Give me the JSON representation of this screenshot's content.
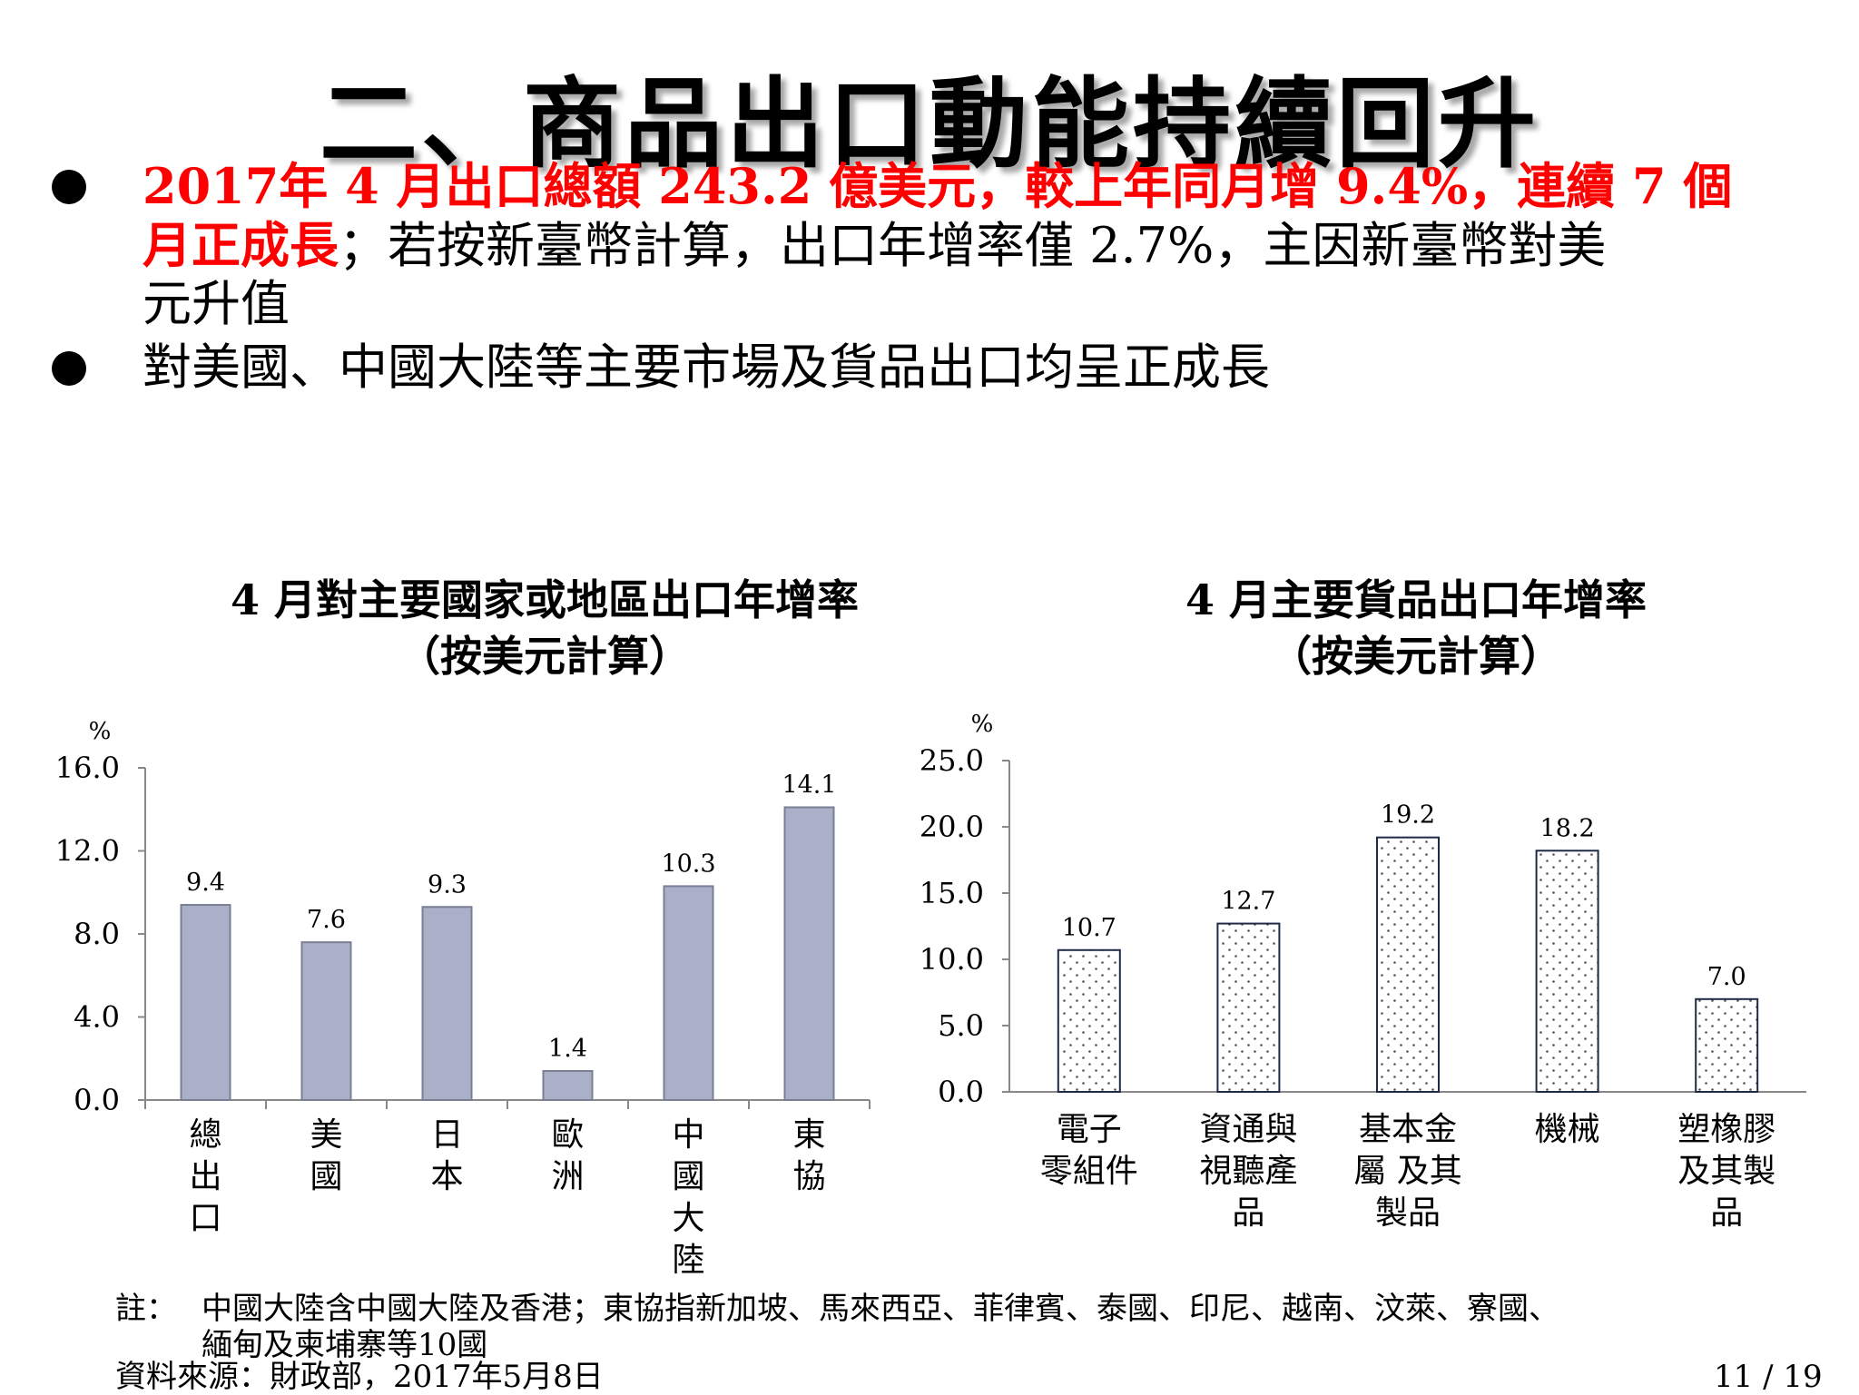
{
  "slide": {
    "title": "二、商品出口動能持續回升",
    "bullets": [
      {
        "red": "2017年 4 月出口總額 243.2 億美元，較上年同月增 9.4%，連續 7 個",
        "red2": "月正成長",
        "rest2": "；若按新臺幣計算，出口年增率僅 2.7%，主因新臺幣對美",
        "rest3": "元升值"
      },
      {
        "text": "對美國、中國大陸等主要市場及貨品出口均呈正成長"
      }
    ],
    "note": {
      "label": "註：",
      "line1": "中國大陸含中國大陸及香港；東協指新加坡、馬來西亞、菲律賓、泰國、印尼、越南、汶萊、寮國、",
      "line2": "緬甸及柬埔寨等10國"
    },
    "source": "資料來源：財政部，2017年5月8日",
    "page": "11 / 19"
  },
  "chart_data": [
    {
      "type": "bar",
      "title": "4 月對主要國家或地區出口年增率",
      "subtitle": "（按美元計算）",
      "ylabel": "%",
      "categories": [
        [
          "總",
          "出",
          "口"
        ],
        [
          "美",
          "國"
        ],
        [
          "日",
          "本"
        ],
        [
          "歐",
          "洲"
        ],
        [
          "中",
          "國",
          "大",
          "陸"
        ],
        [
          "東",
          "協"
        ]
      ],
      "values": [
        9.4,
        7.6,
        9.3,
        1.4,
        10.3,
        14.1
      ],
      "ylim": [
        0,
        16
      ],
      "yticks": [
        "0.0",
        "4.0",
        "8.0",
        "12.0",
        "16.0"
      ],
      "bar_color": "#a9b0c8",
      "grid": false
    },
    {
      "type": "bar",
      "title": "4 月主要貨品出口年增率",
      "subtitle": "（按美元計算）",
      "ylabel": "%",
      "categories": [
        [
          "電子",
          "零組件"
        ],
        [
          "資通與",
          "視聽產",
          "品"
        ],
        [
          "基本金",
          "屬 及其",
          "製品"
        ],
        [
          "機械"
        ],
        [
          "塑橡膠",
          "及其製",
          "品"
        ]
      ],
      "values": [
        10.7,
        12.7,
        19.2,
        18.2,
        7.0
      ],
      "ylim": [
        0,
        25
      ],
      "yticks": [
        "0.0",
        "5.0",
        "10.0",
        "15.0",
        "20.0",
        "25.0"
      ],
      "bar_pattern": "dotted",
      "grid": false
    }
  ]
}
